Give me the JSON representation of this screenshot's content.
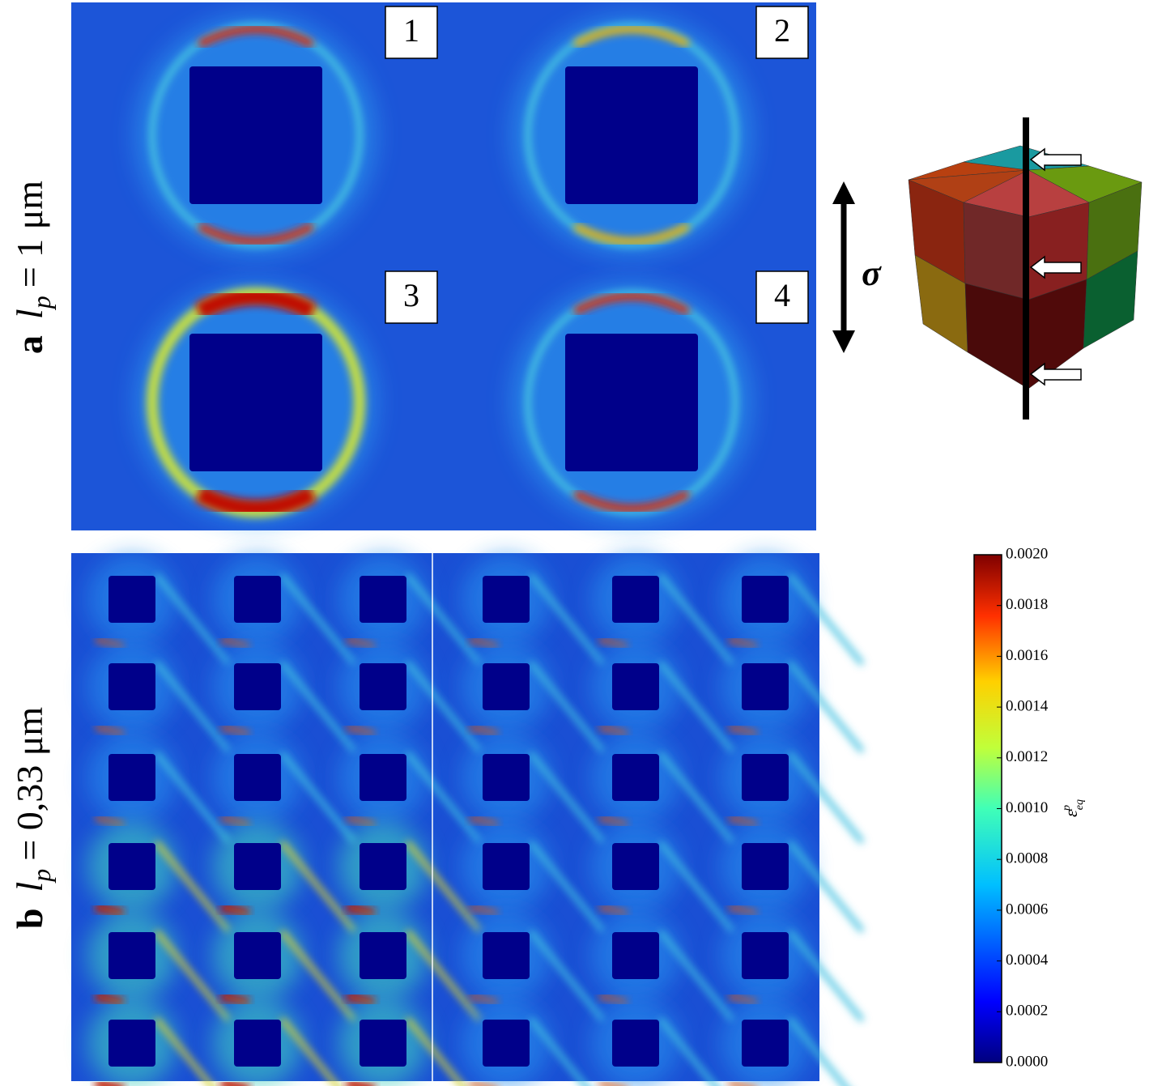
{
  "panel_a": {
    "letter": "a",
    "var": "l",
    "sub": "p",
    "rest": "= 1 μm",
    "badges": [
      "1",
      "2",
      "3",
      "4"
    ],
    "load": "σ"
  },
  "panel_b": {
    "letter": "b",
    "var": "l",
    "sub": "p",
    "rest": "= 0,33 μm"
  },
  "colorbar": {
    "symbol": "ε",
    "sup": "p",
    "sub": "eq",
    "lim": [
      0,
      0.002
    ],
    "ticks": [
      {
        "value": 0,
        "label": "0.0000"
      },
      {
        "value": 0.0002,
        "label": "0.0002"
      },
      {
        "value": 0.0004,
        "label": "0.0004"
      },
      {
        "value": 0.0006,
        "label": "0.0006"
      },
      {
        "value": 0.0008,
        "label": "0.0008"
      },
      {
        "value": 0.001,
        "label": "0.0010"
      },
      {
        "value": 0.0012,
        "label": "0.0012"
      },
      {
        "value": 0.0014,
        "label": "0.0014"
      },
      {
        "value": 0.0016,
        "label": "0.0016"
      },
      {
        "value": 0.0018,
        "label": "0.0018"
      },
      {
        "value": 0.002,
        "label": "0.0020"
      }
    ]
  }
}
